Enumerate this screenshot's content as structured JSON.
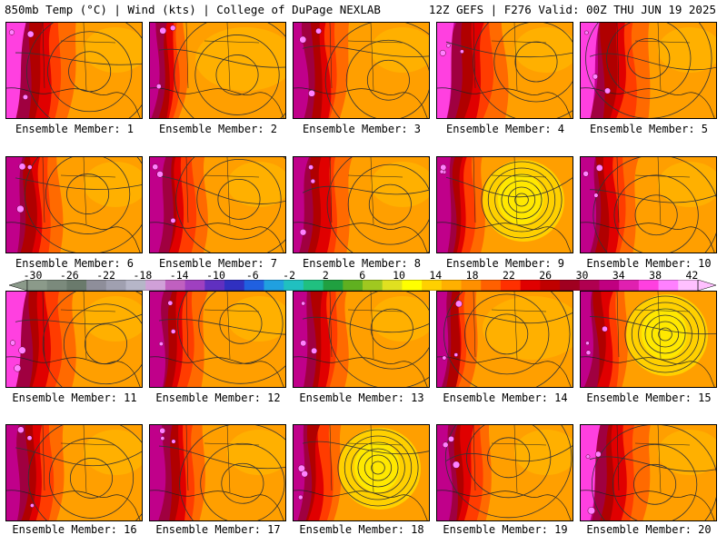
{
  "header": {
    "left_title": "850mb Temp (°C) | Wind (kts) | College of DuPage NEXLAB",
    "right_title": "12Z GEFS | F276 Valid: 00Z THU JUN 19 2025"
  },
  "colorbar": {
    "tick_labels": [
      "-30",
      "-26",
      "-22",
      "-18",
      "-14",
      "-10",
      "-6",
      "-2",
      "2",
      "6",
      "10",
      "14",
      "18",
      "22",
      "26",
      "30",
      "34",
      "38",
      "42"
    ],
    "colors": [
      "#8b9a8a",
      "#7b8a7c",
      "#6a7a6c",
      "#8e8e9a",
      "#a0a0b0",
      "#b6b6c8",
      "#d0a0d8",
      "#c060c0",
      "#9f40c0",
      "#6030c0",
      "#3030c0",
      "#2060e0",
      "#20a0e0",
      "#20c0c0",
      "#20c080",
      "#20a040",
      "#60b020",
      "#a0c820",
      "#e0e020",
      "#ffff00",
      "#ffd000",
      "#ffb000",
      "#ff9000",
      "#ff6000",
      "#ff3000",
      "#e00000",
      "#c00000",
      "#a00020",
      "#b00050",
      "#c00080",
      "#e020b0",
      "#ff40e0",
      "#ff80ff",
      "#ffc0ff"
    ]
  },
  "panels": [
    {
      "label": "Ensemble Member: 1",
      "style": "hot"
    },
    {
      "label": "Ensemble Member: 2",
      "style": "mild"
    },
    {
      "label": "Ensemble Member: 3",
      "style": "warm"
    },
    {
      "label": "Ensemble Member: 4",
      "style": "hot"
    },
    {
      "label": "Ensemble Member: 5",
      "style": "hot"
    },
    {
      "label": "Ensemble Member: 6",
      "style": "warm"
    },
    {
      "label": "Ensemble Member: 7",
      "style": "warm"
    },
    {
      "label": "Ensemble Member: 8",
      "style": "warm"
    },
    {
      "label": "Ensemble Member: 9",
      "style": "low"
    },
    {
      "label": "Ensemble Member: 10",
      "style": "warm"
    },
    {
      "label": "Ensemble Member: 11",
      "style": "hot"
    },
    {
      "label": "Ensemble Member: 12",
      "style": "warm"
    },
    {
      "label": "Ensemble Member: 13",
      "style": "warm"
    },
    {
      "label": "Ensemble Member: 14",
      "style": "mild"
    },
    {
      "label": "Ensemble Member: 15",
      "style": "low"
    },
    {
      "label": "Ensemble Member: 16",
      "style": "warm"
    },
    {
      "label": "Ensemble Member: 17",
      "style": "warm"
    },
    {
      "label": "Ensemble Member: 18",
      "style": "low"
    },
    {
      "label": "Ensemble Member: 19",
      "style": "warm"
    },
    {
      "label": "Ensemble Member: 20",
      "style": "hot"
    }
  ]
}
